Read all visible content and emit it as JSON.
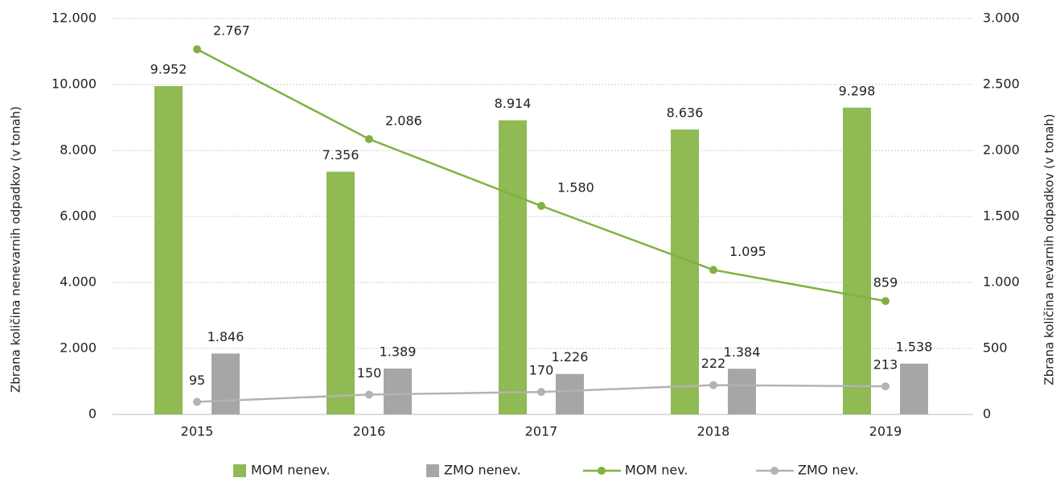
{
  "chart_data": {
    "type": "bar",
    "categories": [
      "2015",
      "2016",
      "2017",
      "2018",
      "2019"
    ],
    "y_label": "Zbrana količina nenevarnih odpadkov (v tonah)",
    "y2_label": "Zbrana količina nevarnih odpadkov (v tonah)",
    "ylim": [
      0,
      12000
    ],
    "yticks": [
      0,
      {
        "value": 2000,
        "label": "2.000"
      },
      {
        "value": 4000,
        "label": "4.000"
      },
      {
        "value": 6000,
        "label": "6.000"
      },
      {
        "value": 8000,
        "label": "8.000"
      },
      {
        "value": 10000,
        "label": "10.000"
      },
      {
        "value": 12000,
        "label": "12.000"
      }
    ],
    "y2lim": [
      0,
      3000
    ],
    "y2ticks": [
      0,
      500,
      {
        "value": 1000,
        "label": "1.000"
      },
      {
        "value": 1500,
        "label": "1.500"
      },
      {
        "value": 2000,
        "label": "2.000"
      },
      {
        "value": 2500,
        "label": "2.500"
      },
      {
        "value": 3000,
        "label": "3.000"
      }
    ],
    "grid": true,
    "legend": "bottom",
    "series": [
      {
        "name": "MOM nenev.",
        "type": "bar",
        "color": "#8fba54",
        "values": [
          9952,
          7356,
          8914,
          8636,
          9298
        ],
        "value_labels": [
          "9.952",
          "7.356",
          "8.914",
          "8.636",
          "9.298"
        ]
      },
      {
        "name": "ZMO nenev.",
        "type": "bar",
        "color": "#a6a6a8",
        "values": [
          1846,
          1389,
          1226,
          1384,
          1538
        ],
        "value_labels": [
          "1.846",
          "1.389",
          "1.226",
          "1.384",
          "1.538"
        ]
      },
      {
        "name": "MOM nev.",
        "type": "line",
        "axis": "y2",
        "color": "#7fb241",
        "values": [
          2767,
          2086,
          1580,
          1095,
          859
        ],
        "value_labels": [
          "2.767",
          "2.086",
          "1.580",
          "1.095",
          "859"
        ]
      },
      {
        "name": "ZMO nev.",
        "type": "line",
        "axis": "y2",
        "color": "#b3b3b3",
        "values": [
          95,
          150,
          170,
          222,
          213
        ]
      }
    ]
  }
}
